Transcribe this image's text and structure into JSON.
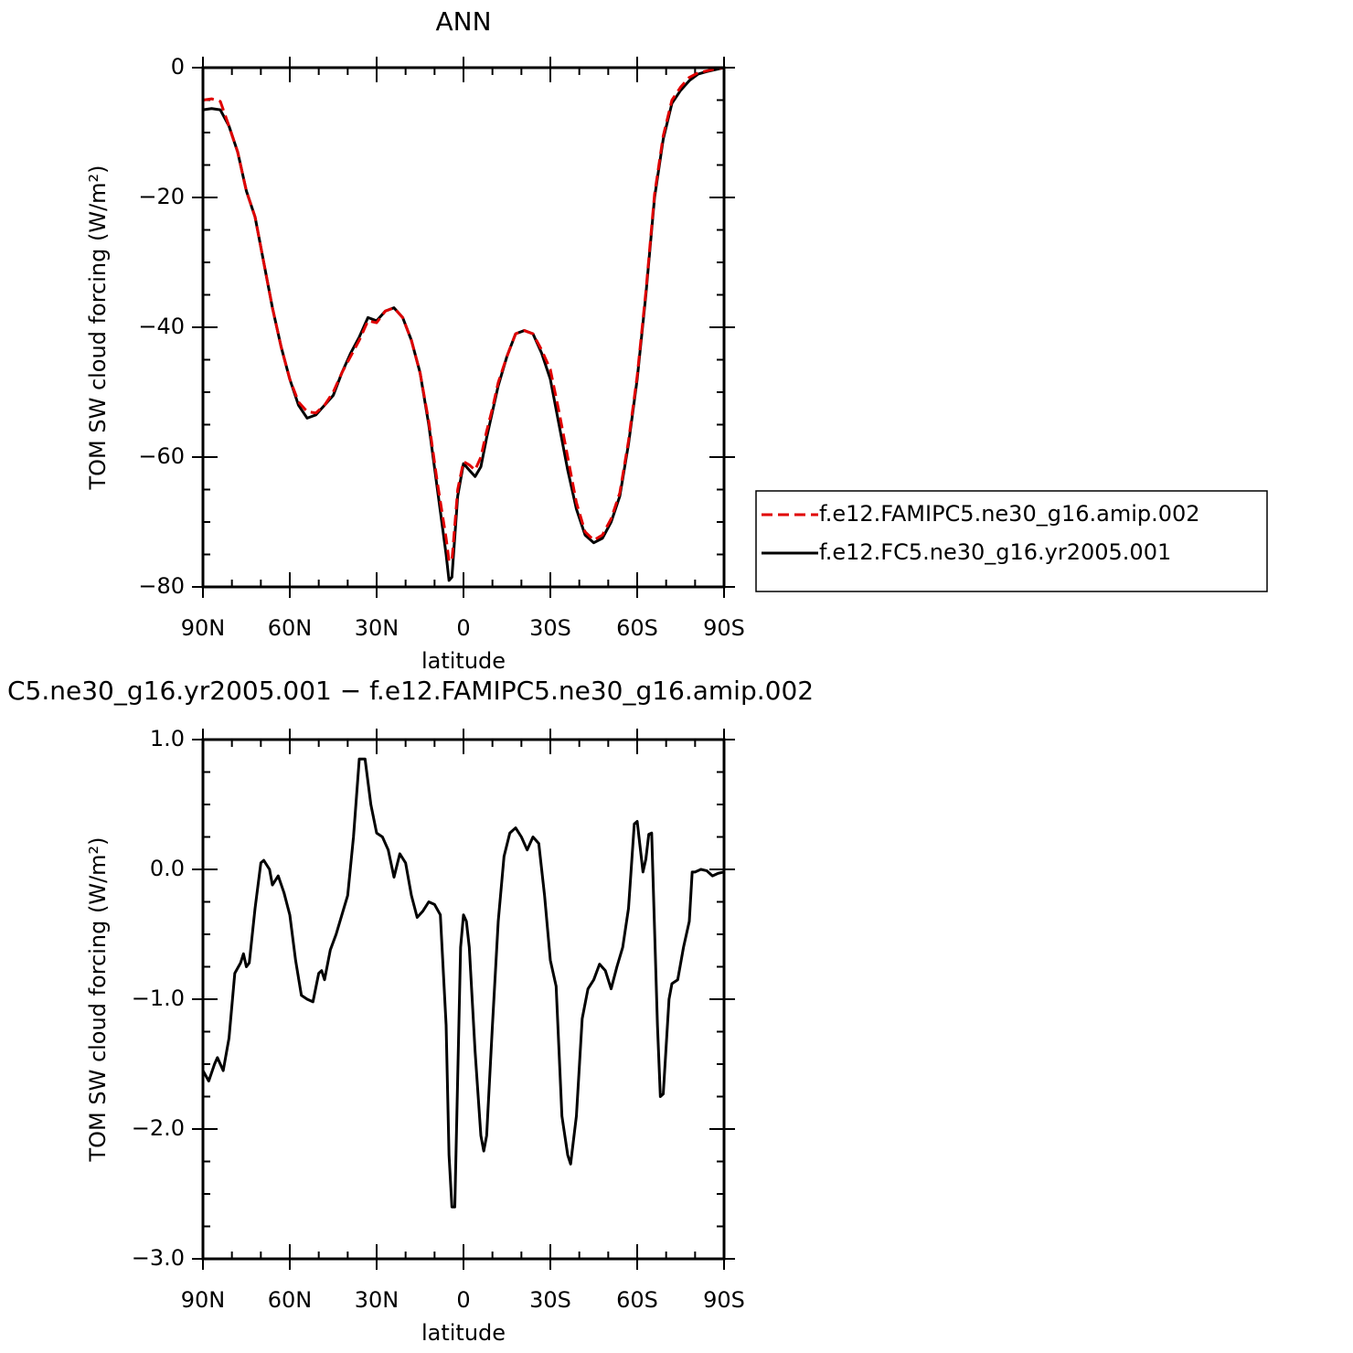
{
  "chart_data": [
    {
      "type": "line",
      "title": "ANN",
      "xlabel": "latitude",
      "ylabel": "TOM SW cloud forcing (W/m²)",
      "xlim": [
        90,
        -90
      ],
      "xticks": [
        {
          "value": 90,
          "label": "90N"
        },
        {
          "value": 60,
          "label": "60N"
        },
        {
          "value": 30,
          "label": "30N"
        },
        0,
        {
          "value": -30,
          "label": "30S"
        },
        {
          "value": -60,
          "label": "60S"
        },
        {
          "value": -90,
          "label": "90S"
        }
      ],
      "ylim": [
        -80,
        0
      ],
      "yticks": [
        0,
        -20,
        -40,
        -60,
        -80
      ],
      "legend": "outside-right",
      "x": [
        90,
        87,
        84,
        81,
        78,
        75,
        72,
        69,
        66,
        63,
        60,
        57,
        54,
        51,
        48,
        45,
        42,
        39,
        36,
        33,
        30,
        27,
        24,
        21,
        18,
        15,
        12,
        9,
        6,
        5,
        4,
        2,
        0,
        -2,
        -4,
        -6,
        -8,
        -10,
        -12,
        -15,
        -18,
        -21,
        -24,
        -27,
        -30,
        -33,
        -36,
        -39,
        -42,
        -45,
        -48,
        -51,
        -54,
        -57,
        -60,
        -63,
        -66,
        -69,
        -72,
        -75,
        -78,
        -81,
        -84,
        -87,
        -90
      ],
      "series": [
        {
          "name": "f.e12.FAMIPC5.ne30_g16.amip.002",
          "color": "#e00000",
          "linestyle": "dashed",
          "values": [
            -5,
            -4.8,
            -5.2,
            -9,
            -13,
            -19,
            -23,
            -30,
            -37,
            -43,
            -48,
            -51.5,
            -53,
            -53.2,
            -52,
            -50,
            -47,
            -44.5,
            -42,
            -39,
            -39.3,
            -37.5,
            -37,
            -38.5,
            -42,
            -47,
            -54.5,
            -64,
            -72.5,
            -76,
            -76,
            -65,
            -60.7,
            -61.2,
            -62,
            -60,
            -56,
            -52.5,
            -48.5,
            -44.5,
            -41,
            -40.5,
            -41,
            -43.5,
            -46.5,
            -53,
            -60,
            -67,
            -71.5,
            -72.8,
            -72,
            -69.5,
            -65.5,
            -57.5,
            -47.5,
            -34.5,
            -19.5,
            -10.5,
            -5,
            -3,
            -1.5,
            -0.8,
            -0.5,
            -0.2,
            0
          ]
        },
        {
          "name": "f.e12.FC5.ne30_g16.yr2005.001",
          "color": "#000000",
          "linestyle": "solid",
          "values": [
            -6.5,
            -6.3,
            -6.5,
            -9,
            -13,
            -19,
            -23,
            -30,
            -37,
            -43,
            -48,
            -52,
            -54,
            -53.5,
            -52,
            -50.5,
            -47,
            -44,
            -41.5,
            -38.5,
            -39,
            -37.5,
            -37,
            -38.5,
            -42,
            -47,
            -55,
            -65,
            -75,
            -79,
            -78.5,
            -66,
            -61,
            -62,
            -63,
            -61.5,
            -57,
            -53,
            -49,
            -44.5,
            -41,
            -40.5,
            -41,
            -44,
            -48,
            -55,
            -62,
            -68,
            -72,
            -73.2,
            -72.5,
            -70,
            -66,
            -58,
            -48,
            -35,
            -20,
            -11,
            -5.5,
            -3.5,
            -2,
            -1,
            -0.6,
            -0.3,
            0
          ]
        }
      ]
    },
    {
      "type": "line",
      "title": "C5.ne30_g16.yr2005.001 − f.e12.FAMIPC5.ne30_g16.amip.002",
      "xlabel": "latitude",
      "ylabel": "TOM SW cloud forcing (W/m²)",
      "xlim": [
        90,
        -90
      ],
      "xticks": [
        {
          "value": 90,
          "label": "90N"
        },
        {
          "value": 60,
          "label": "60N"
        },
        {
          "value": 30,
          "label": "30N"
        },
        0,
        {
          "value": -30,
          "label": "30S"
        },
        {
          "value": -60,
          "label": "60S"
        },
        {
          "value": -90,
          "label": "90S"
        }
      ],
      "ylim": [
        -3,
        1
      ],
      "yticks": [
        {
          "value": 1,
          "label": "1.0"
        },
        {
          "value": 0,
          "label": "0.0"
        },
        {
          "value": -1,
          "label": "−1.0"
        },
        {
          "value": -2,
          "label": "−2.0"
        },
        {
          "value": -3,
          "label": "−3.0"
        }
      ],
      "color": "#000000",
      "x": [
        90,
        88,
        86,
        85,
        83,
        81,
        79,
        77,
        76,
        75,
        74,
        72,
        70,
        69,
        67,
        66,
        64,
        62,
        60,
        58,
        56,
        54,
        52,
        50,
        49,
        48,
        46,
        44,
        42,
        40,
        38,
        36,
        34,
        32,
        30,
        28,
        26,
        24,
        22,
        20,
        18,
        16,
        14,
        12,
        10,
        8,
        6,
        5,
        4,
        3,
        2,
        1,
        0,
        -1,
        -2,
        -4,
        -6,
        -7,
        -8,
        -10,
        -12,
        -14,
        -16,
        -18,
        -20,
        -22,
        -24,
        -26,
        -28,
        -30,
        -32,
        -34,
        -36,
        -37,
        -39,
        -41,
        -43,
        -45,
        -47,
        -49,
        -51,
        -53,
        -55,
        -57,
        -59,
        -60,
        -62,
        -63,
        -64,
        -65,
        -67,
        -68,
        -69,
        -71,
        -72,
        -74,
        -76,
        -78,
        -79,
        -80,
        -82,
        -84,
        -86,
        -88,
        -90
      ],
      "values": [
        -1.55,
        -1.63,
        -1.5,
        -1.45,
        -1.55,
        -1.3,
        -0.8,
        -0.72,
        -0.65,
        -0.75,
        -0.72,
        -0.3,
        0.05,
        0.07,
        0,
        -0.12,
        -0.05,
        -0.18,
        -0.35,
        -0.7,
        -0.97,
        -1,
        -1.02,
        -0.8,
        -0.78,
        -0.85,
        -0.62,
        -0.5,
        -0.35,
        -0.2,
        0.25,
        0.85,
        0.85,
        0.5,
        0.28,
        0.25,
        0.15,
        -0.06,
        0.12,
        0.05,
        -0.2,
        -0.37,
        -0.32,
        -0.25,
        -0.27,
        -0.35,
        -1.2,
        -2.2,
        -2.6,
        -2.6,
        -1.6,
        -0.6,
        -0.35,
        -0.4,
        -0.6,
        -1.4,
        -2.05,
        -2.17,
        -2.05,
        -1.2,
        -0.4,
        0.1,
        0.28,
        0.32,
        0.25,
        0.15,
        0.25,
        0.2,
        -0.2,
        -0.7,
        -0.9,
        -1.9,
        -2.2,
        -2.27,
        -1.9,
        -1.15,
        -0.92,
        -0.85,
        -0.73,
        -0.78,
        -0.92,
        -0.75,
        -0.6,
        -0.3,
        0.35,
        0.37,
        -0.02,
        0.08,
        0.27,
        0.28,
        -1.2,
        -1.75,
        -1.73,
        -1,
        -0.88,
        -0.85,
        -0.6,
        -0.4,
        -0.02,
        -0.02,
        0,
        -0.01,
        -0.05,
        -0.03,
        -0.02
      ]
    }
  ]
}
